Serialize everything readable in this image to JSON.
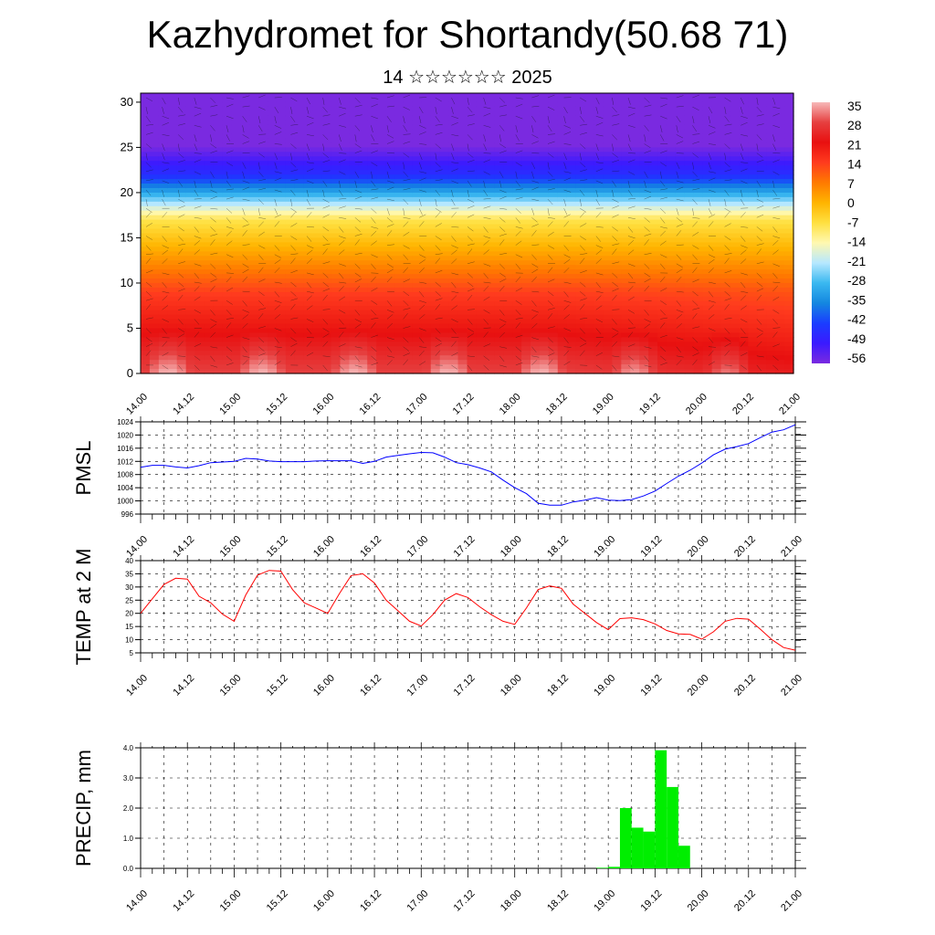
{
  "title": "Kazhydromet for Shortandy(50.68 71)",
  "subtitle": "14 ☆☆☆☆☆☆ 2025",
  "time_labels": [
    "14.00",
    "14.12",
    "15.00",
    "15.12",
    "16.00",
    "16.12",
    "17.00",
    "17.12",
    "18.00",
    "18.12",
    "19.00",
    "19.12",
    "20.00",
    "20.12",
    "21.00"
  ],
  "colors": {
    "pmsl_line": "#0000ff",
    "temp_line": "#ff0000",
    "precip_bar": "#00ee00"
  },
  "chart_data": [
    {
      "id": "cross-section",
      "type": "heatmap",
      "xlabel": "",
      "ylabel": "",
      "ylim": [
        0,
        30
      ],
      "yticks": [
        0,
        5,
        10,
        15,
        20,
        25,
        30
      ],
      "xlim": [
        14,
        21
      ],
      "grid": false,
      "colorbar": {
        "labels": [
          "35",
          "28",
          "21",
          "14",
          "7",
          "0",
          "-7",
          "-14",
          "-21",
          "-28",
          "-35",
          "-42",
          "-49",
          "-56"
        ],
        "stops": [
          {
            "v": 35,
            "color": "#f7b9b9"
          },
          {
            "v": 28,
            "color": "#e64040"
          },
          {
            "v": 21,
            "color": "#e81010"
          },
          {
            "v": 14,
            "color": "#ff3b1e"
          },
          {
            "v": 7,
            "color": "#ff7a00"
          },
          {
            "v": 0,
            "color": "#ffb400"
          },
          {
            "v": -7,
            "color": "#ffe040"
          },
          {
            "v": -14,
            "color": "#fff8b0"
          },
          {
            "v": -21,
            "color": "#b6e8ff"
          },
          {
            "v": -28,
            "color": "#3ab8f0"
          },
          {
            "v": -35,
            "color": "#1487e0"
          },
          {
            "v": -42,
            "color": "#1a3dff"
          },
          {
            "v": -49,
            "color": "#3a1aff"
          },
          {
            "v": -56,
            "color": "#7a2ae0"
          }
        ]
      },
      "overlay": "wind barbs and streamlines"
    },
    {
      "id": "pmsl",
      "type": "line",
      "ylabel": "PMSL",
      "ylim": [
        996,
        1024
      ],
      "yticks": [
        996,
        1000,
        1004,
        1008,
        1012,
        1016,
        1020,
        1024
      ],
      "grid": true,
      "series": [
        {
          "x": [
            14.0,
            14.125,
            14.25,
            14.375,
            14.5,
            14.625,
            14.75,
            14.875,
            15.0,
            15.125,
            15.25,
            15.375,
            15.5,
            15.625,
            15.75,
            15.875,
            16.0,
            16.125,
            16.25,
            16.375,
            16.5,
            16.625,
            16.75,
            16.875,
            17.0,
            17.125,
            17.25,
            17.375,
            17.5,
            17.625,
            17.75,
            17.875,
            18.0,
            18.125,
            18.25,
            18.375,
            18.5,
            18.625,
            18.75,
            18.875,
            19.0,
            19.125,
            19.25,
            19.375,
            19.5,
            19.625,
            19.75,
            19.875,
            20.0,
            20.125,
            20.25,
            20.375,
            20.5,
            20.625,
            20.75,
            20.875,
            21.0
          ],
          "values": [
            1010.2,
            1010.8,
            1010.8,
            1010.3,
            1010.0,
            1010.7,
            1011.6,
            1011.8,
            1012.0,
            1012.9,
            1012.7,
            1012.1,
            1011.9,
            1011.9,
            1011.9,
            1012.1,
            1012.2,
            1012.2,
            1012.2,
            1011.4,
            1012.0,
            1013.3,
            1013.8,
            1014.3,
            1014.7,
            1014.6,
            1013.3,
            1011.6,
            1011.0,
            1010.0,
            1008.8,
            1006.3,
            1004.0,
            1002.2,
            999.3,
            998.7,
            998.7,
            999.7,
            1000.2,
            1001.0,
            1000.2,
            1000.1,
            1000.4,
            1001.5,
            1003.0,
            1005.3,
            1007.5,
            1009.3,
            1011.5,
            1014.0,
            1015.7,
            1016.5,
            1017.4,
            1019.2,
            1020.9,
            1021.6,
            1023.1
          ]
        }
      ]
    },
    {
      "id": "temp",
      "type": "line",
      "ylabel": "TEMP at 2 M",
      "ylim": [
        5,
        40
      ],
      "yticks": [
        5,
        10,
        15,
        20,
        25,
        30,
        35,
        40
      ],
      "grid": true,
      "series": [
        {
          "x": [
            14.0,
            14.125,
            14.25,
            14.375,
            14.5,
            14.625,
            14.75,
            14.875,
            15.0,
            15.125,
            15.25,
            15.375,
            15.5,
            15.625,
            15.75,
            15.875,
            16.0,
            16.125,
            16.25,
            16.375,
            16.5,
            16.625,
            16.75,
            16.875,
            17.0,
            17.125,
            17.25,
            17.375,
            17.5,
            17.625,
            17.75,
            17.875,
            18.0,
            18.125,
            18.25,
            18.375,
            18.5,
            18.625,
            18.75,
            18.875,
            19.0,
            19.125,
            19.25,
            19.375,
            19.5,
            19.625,
            19.75,
            19.875,
            20.0,
            20.125,
            20.25,
            20.375,
            20.5,
            20.625,
            20.75,
            20.875,
            21.0
          ],
          "values": [
            20.0,
            25.5,
            31.0,
            33.3,
            33.0,
            26.5,
            24.0,
            19.7,
            17.0,
            27.0,
            34.5,
            36.3,
            36.0,
            29.0,
            24.0,
            22.0,
            20.0,
            27.5,
            34.3,
            35.0,
            31.5,
            25.0,
            21.0,
            17.0,
            15.2,
            19.5,
            25.0,
            27.5,
            26.0,
            22.5,
            19.5,
            17.0,
            15.8,
            22.0,
            29.0,
            30.4,
            29.5,
            23.5,
            20.0,
            16.5,
            13.8,
            18.0,
            18.3,
            17.6,
            16.0,
            13.5,
            12.2,
            12.0,
            10.2,
            13.0,
            17.0,
            18.1,
            17.8,
            14.0,
            10.0,
            7.0,
            6.0
          ]
        }
      ]
    },
    {
      "id": "precip",
      "type": "bar",
      "ylabel": "PRECIP, mm",
      "ylim": [
        0,
        4
      ],
      "yticks": [
        "0.0",
        "1.0",
        "2.0",
        "3.0",
        "4.0"
      ],
      "grid": true,
      "bar_width_hours": 3,
      "bars": [
        {
          "x_start": 18.875,
          "value": 0.02
        },
        {
          "x_start": 19.0,
          "value": 0.05
        },
        {
          "x_start": 19.125,
          "value": 2.0
        },
        {
          "x_start": 19.25,
          "value": 1.35
        },
        {
          "x_start": 19.375,
          "value": 1.22
        },
        {
          "x_start": 19.5,
          "value": 3.92
        },
        {
          "x_start": 19.625,
          "value": 2.7
        },
        {
          "x_start": 19.75,
          "value": 0.75
        }
      ]
    }
  ]
}
